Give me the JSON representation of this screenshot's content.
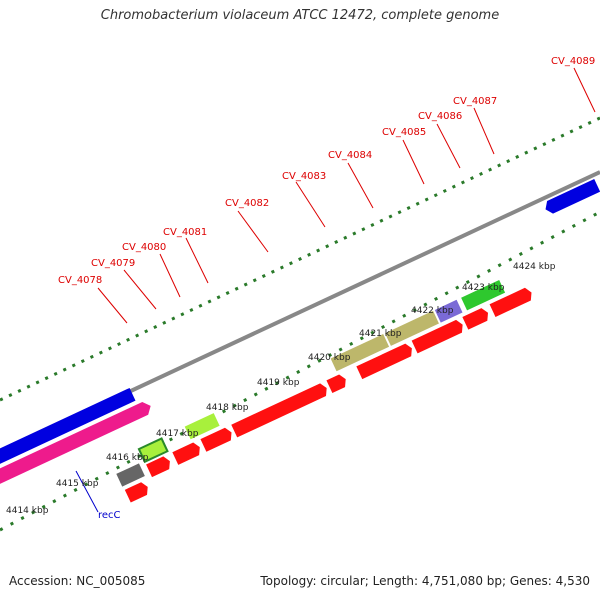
{
  "title": "Chromobacterium violaceum ATCC 12472, complete genome",
  "footer": {
    "accession": "Accession: NC_005085",
    "summary": "Topology: circular; Length: 4,751,080 bp; Genes: 4,530"
  },
  "scale_labels": [
    "4414 kbp",
    "4415 kbp",
    "4416 kbp",
    "4417 kbp",
    "4418 kbp",
    "4419 kbp",
    "4420 kbp",
    "4421 kbp",
    "4422 kbp",
    "4423 kbp",
    "4424 kbp"
  ],
  "gene_labels": {
    "cv4078": "CV_4078",
    "cv4079": "CV_4079",
    "cv4080": "CV_4080",
    "cv4081": "CV_4081",
    "cv4082": "CV_4082",
    "cv4083": "CV_4083",
    "cv4084": "CV_4084",
    "cv4085": "CV_4085",
    "cv4086": "CV_4086",
    "cv4087": "CV_4087",
    "cv4089": "CV_4089",
    "recC": "recC"
  },
  "colors": {
    "backbone": "#888888",
    "tick_outer": "#2a7a2a",
    "cds_red": "#ff0000",
    "cds_blue": "#0000e0",
    "cds_magenta": "#ee1b8c",
    "cds_khaki": "#bdb76b",
    "cds_green": "#2ec82e",
    "cds_lime": "#a8f03c",
    "cds_gray": "#666666",
    "cds_purple": "#7a6ad6",
    "label_red": "#dd0000",
    "label_blue": "#0000cc"
  }
}
